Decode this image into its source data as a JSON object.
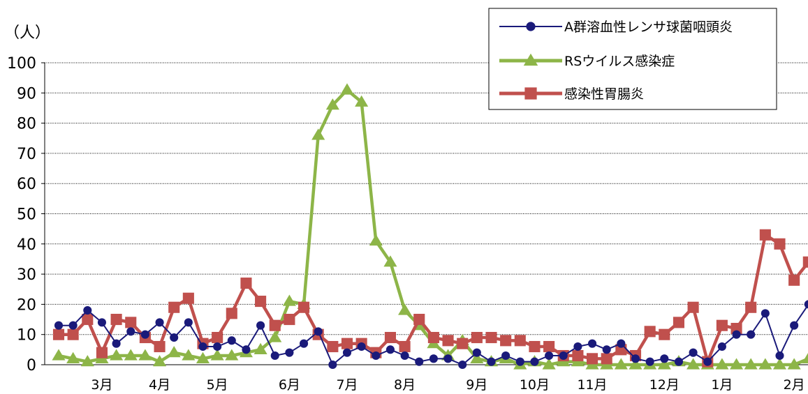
{
  "chart_data": {
    "type": "line",
    "title": "",
    "ylabel": "（人）",
    "xlabel": "",
    "ylim": [
      0,
      100
    ],
    "yticks": [
      0,
      10,
      20,
      30,
      40,
      50,
      60,
      70,
      80,
      90,
      100
    ],
    "grid": true,
    "legend_position": "top-right",
    "x_month_labels": [
      {
        "label": "3月",
        "week": 3
      },
      {
        "label": "4月",
        "week": 7
      },
      {
        "label": "5月",
        "week": 11
      },
      {
        "label": "6月",
        "week": 16
      },
      {
        "label": "7月",
        "week": 20
      },
      {
        "label": "8月",
        "week": 24
      },
      {
        "label": "9月",
        "week": 29
      },
      {
        "label": "10月",
        "week": 33
      },
      {
        "label": "11月",
        "week": 37
      },
      {
        "label": "12月",
        "week": 42
      },
      {
        "label": "1月",
        "week": 46
      },
      {
        "label": "2月",
        "week": 51
      }
    ],
    "weeks": 53,
    "series": [
      {
        "name": "A群溶血性レンサ球菌咽頭炎",
        "color": "#1a1a7a",
        "marker": "circle",
        "values": [
          13,
          13,
          18,
          14,
          7,
          11,
          10,
          14,
          9,
          14,
          6,
          6,
          8,
          5,
          13,
          3,
          4,
          7,
          11,
          0,
          4,
          6,
          3,
          5,
          3,
          1,
          2,
          2,
          0,
          4,
          1,
          3,
          1,
          1,
          3,
          3,
          6,
          7,
          5,
          7,
          2,
          1,
          2,
          1,
          4,
          1,
          6,
          10,
          10,
          17,
          3,
          13,
          20
        ]
      },
      {
        "name": "RSウイルス感染症",
        "color": "#8db548",
        "marker": "triangle",
        "values": [
          3,
          2,
          1,
          2,
          3,
          3,
          3,
          1,
          4,
          3,
          2,
          3,
          3,
          4,
          5,
          9,
          21,
          20,
          76,
          86,
          91,
          87,
          41,
          34,
          18,
          13,
          7,
          3,
          8,
          2,
          1,
          2,
          0,
          1,
          0,
          1,
          1,
          0,
          0,
          0,
          0,
          0,
          0,
          1,
          0,
          0,
          0,
          0,
          0,
          0,
          0,
          0,
          2
        ]
      },
      {
        "name": "感染性胃腸炎",
        "color": "#c0504d",
        "marker": "square",
        "values": [
          10,
          10,
          15,
          4,
          15,
          14,
          9,
          6,
          19,
          22,
          7,
          9,
          17,
          27,
          21,
          13,
          15,
          19,
          10,
          6,
          7,
          7,
          4,
          9,
          6,
          15,
          9,
          8,
          7,
          9,
          9,
          8,
          8,
          6,
          6,
          3,
          3,
          2,
          2,
          5,
          3,
          11,
          10,
          14,
          19,
          1,
          13,
          12,
          19,
          43,
          40,
          28,
          34
        ]
      }
    ]
  }
}
